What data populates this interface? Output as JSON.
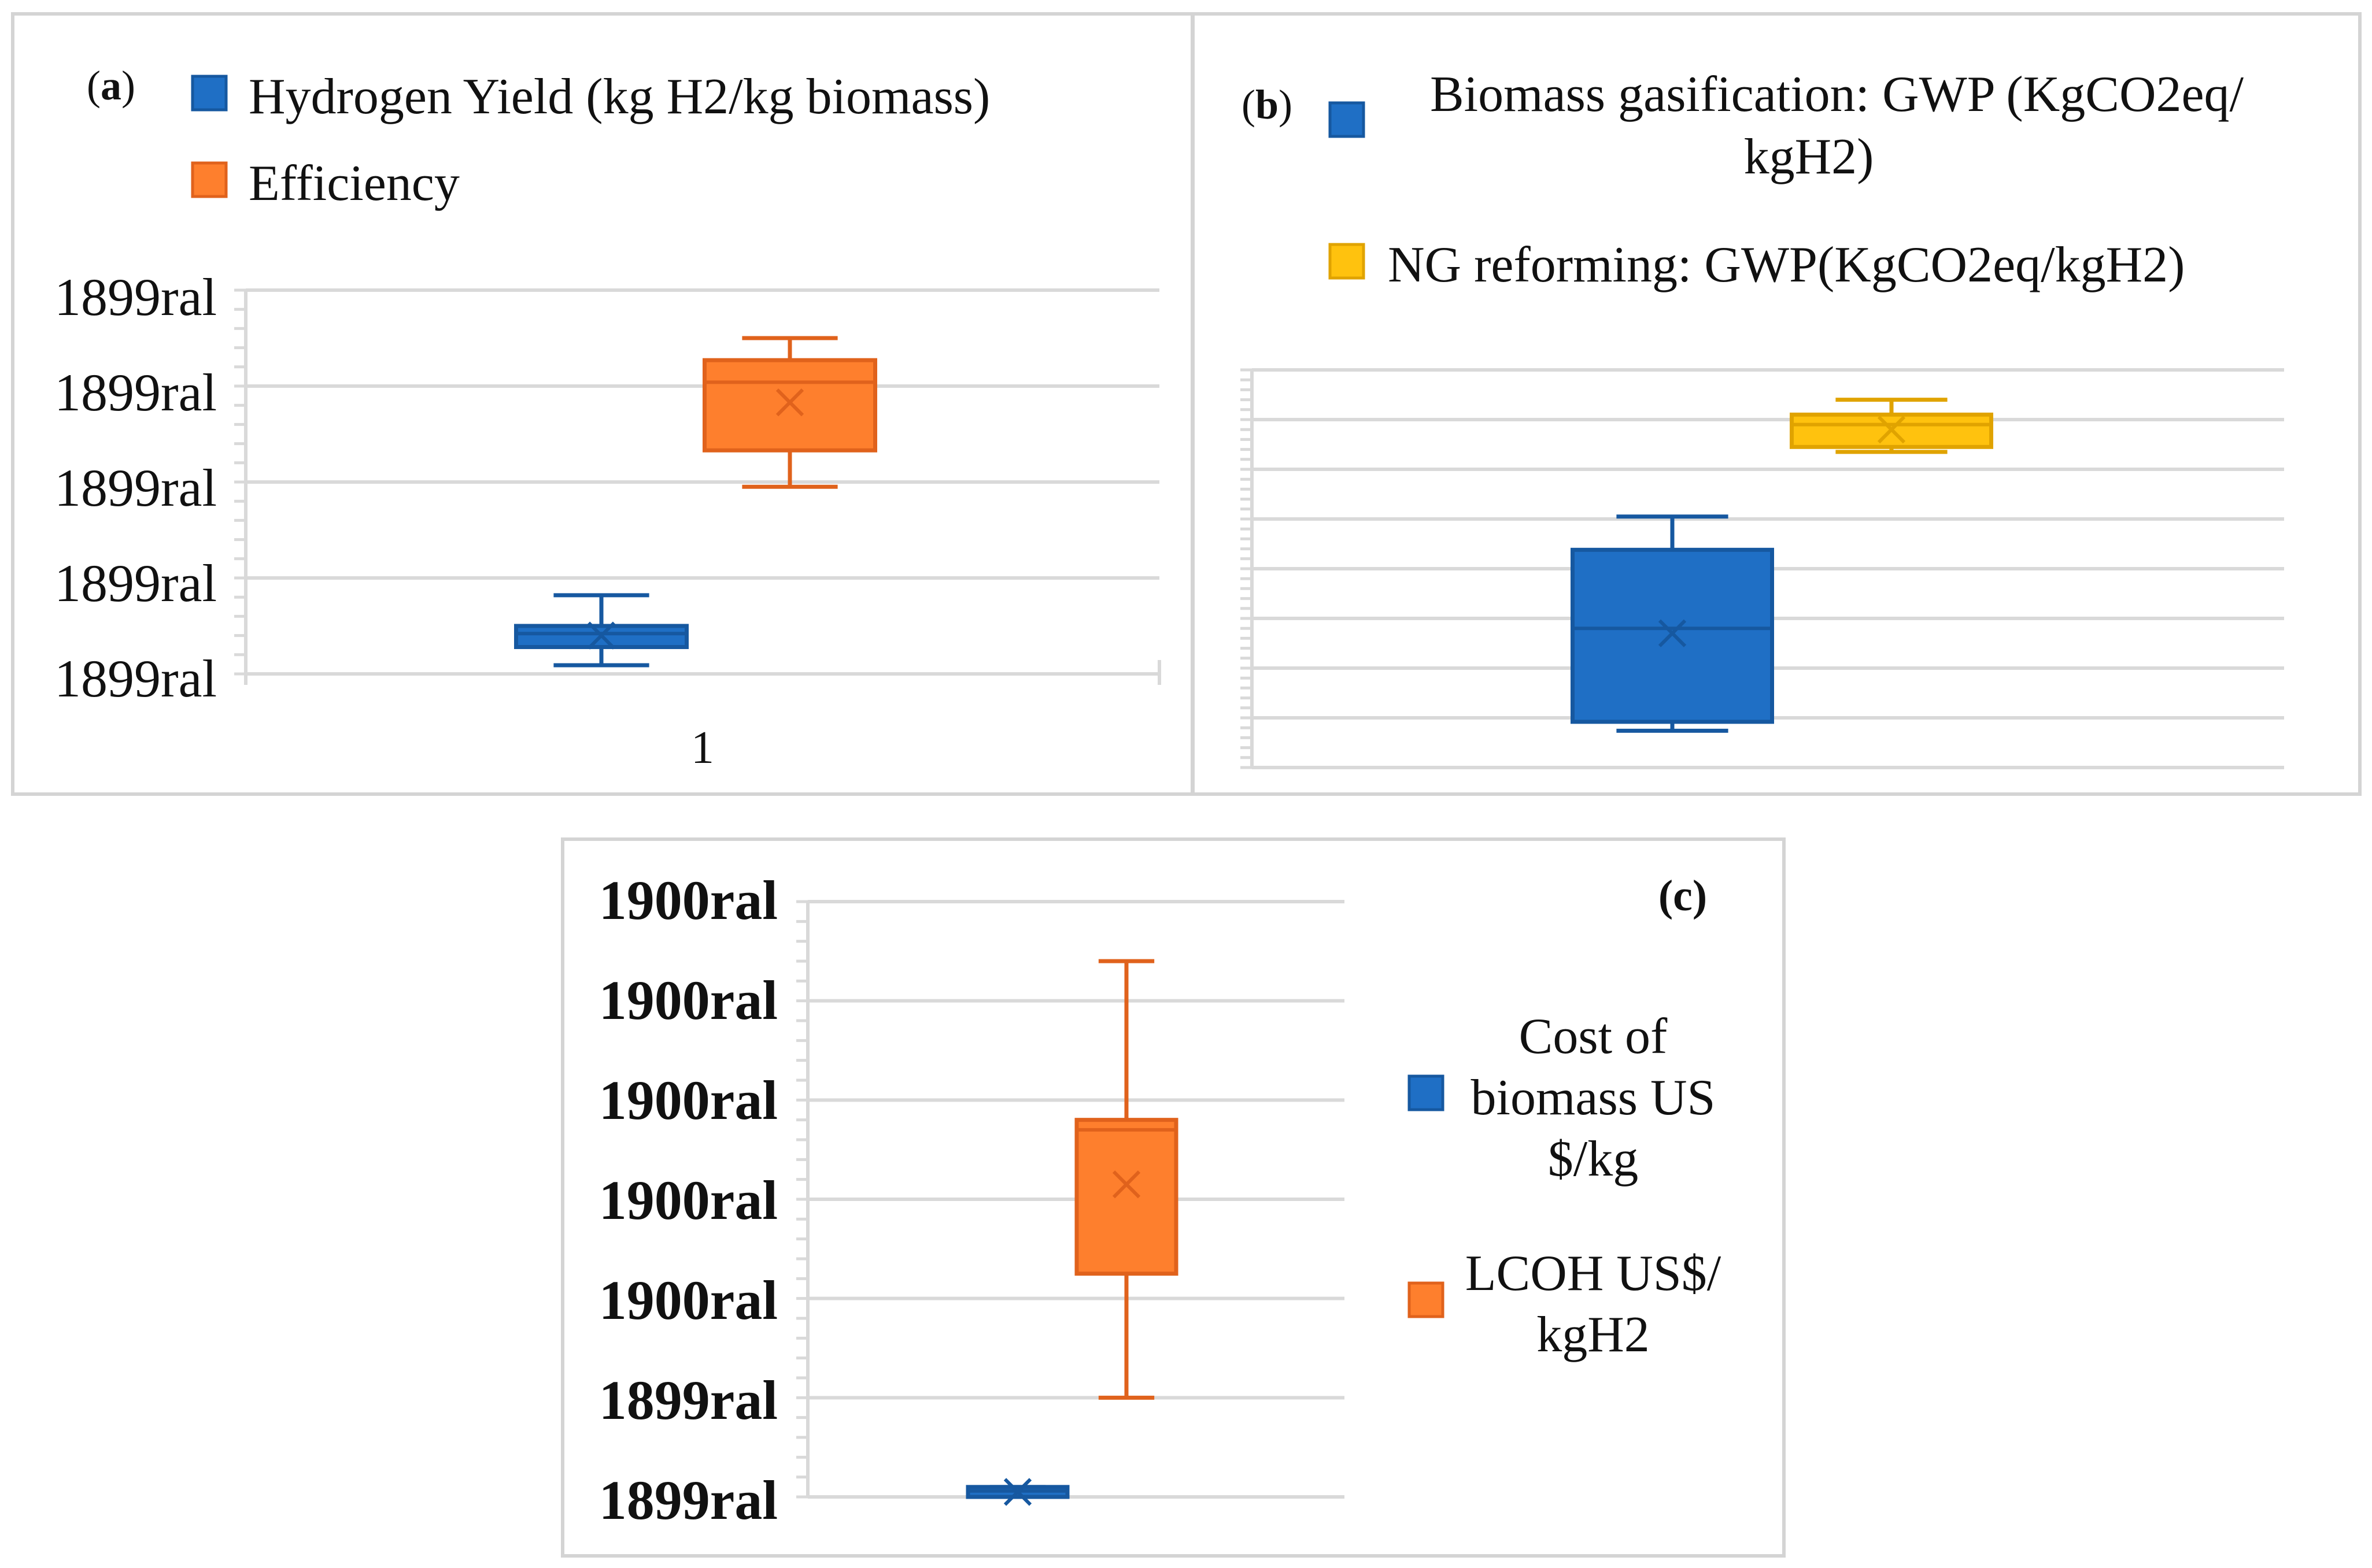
{
  "colors": {
    "blue": "#1f6fc5",
    "blue_dark": "#1658a0",
    "orange": "#fe7f2d",
    "orange_dark": "#e0621c",
    "yellow": "#ffc20e",
    "yellow_dark": "#e0a300",
    "grid": "#d9d9d9",
    "frame": "#d4d4d4"
  },
  "chart_data": [
    {
      "id": "a",
      "type": "box",
      "panel_label": "(a)",
      "panel_label_parts": [
        "(",
        "a",
        ")"
      ],
      "yticks": [
        "1899ral",
        "1899ral",
        "1899ral",
        "1899ral",
        "1899ral"
      ],
      "xticks": [
        "1"
      ],
      "ylim": [
        0,
        4
      ],
      "grid": true,
      "legend_position": "top",
      "series": [
        {
          "name": "Hydrogen Yield (kg H2/kg biomass)",
          "color_key": "blue",
          "min": 0.09,
          "q1": 0.28,
          "median": 0.42,
          "q3": 0.5,
          "max": 0.82,
          "mean": 0.4
        },
        {
          "name": "Efficiency",
          "color_key": "orange",
          "min": 1.95,
          "q1": 2.33,
          "median": 3.04,
          "q3": 3.27,
          "max": 3.5,
          "mean": 2.83
        }
      ]
    },
    {
      "id": "b",
      "type": "box",
      "panel_label": "(b)",
      "panel_label_parts": [
        "(",
        "b",
        ")"
      ],
      "yticks": [],
      "ylim": [
        0,
        8
      ],
      "grid": true,
      "legend_position": "top",
      "series": [
        {
          "name_lines": [
            "Biomass gasification: GWP (KgCO2eq/",
            "kgH2)"
          ],
          "color_key": "blue",
          "min": 0.74,
          "q1": 0.92,
          "median": 2.8,
          "q3": 4.38,
          "max": 5.05,
          "mean": 2.7
        },
        {
          "name_lines": [
            "NG reforming: GWP(KgCO2eq/kgH2)"
          ],
          "color_key": "yellow",
          "min": 6.35,
          "q1": 6.45,
          "median": 6.9,
          "q3": 7.1,
          "max": 7.4,
          "mean": 6.8
        }
      ]
    },
    {
      "id": "c",
      "type": "box",
      "panel_label": "(c)",
      "yticks": [
        "1899ral",
        "1899ral",
        "1900ral",
        "1900ral",
        "1900ral",
        "1900ral",
        "1900ral"
      ],
      "ylim": [
        0,
        6
      ],
      "grid": true,
      "legend_position": "right",
      "series": [
        {
          "name_lines": [
            "Cost of",
            "biomass US",
            "$/kg"
          ],
          "color_key": "blue",
          "min": 0.0,
          "q1": 0.0,
          "median": 0.06,
          "q3": 0.1,
          "max": 0.1,
          "mean": 0.05
        },
        {
          "name_lines": [
            "LCOH US$/",
            "kgH2"
          ],
          "color_key": "orange",
          "min": 1.0,
          "q1": 2.25,
          "median": 3.7,
          "q3": 3.8,
          "max": 5.4,
          "mean": 3.15
        }
      ]
    }
  ]
}
